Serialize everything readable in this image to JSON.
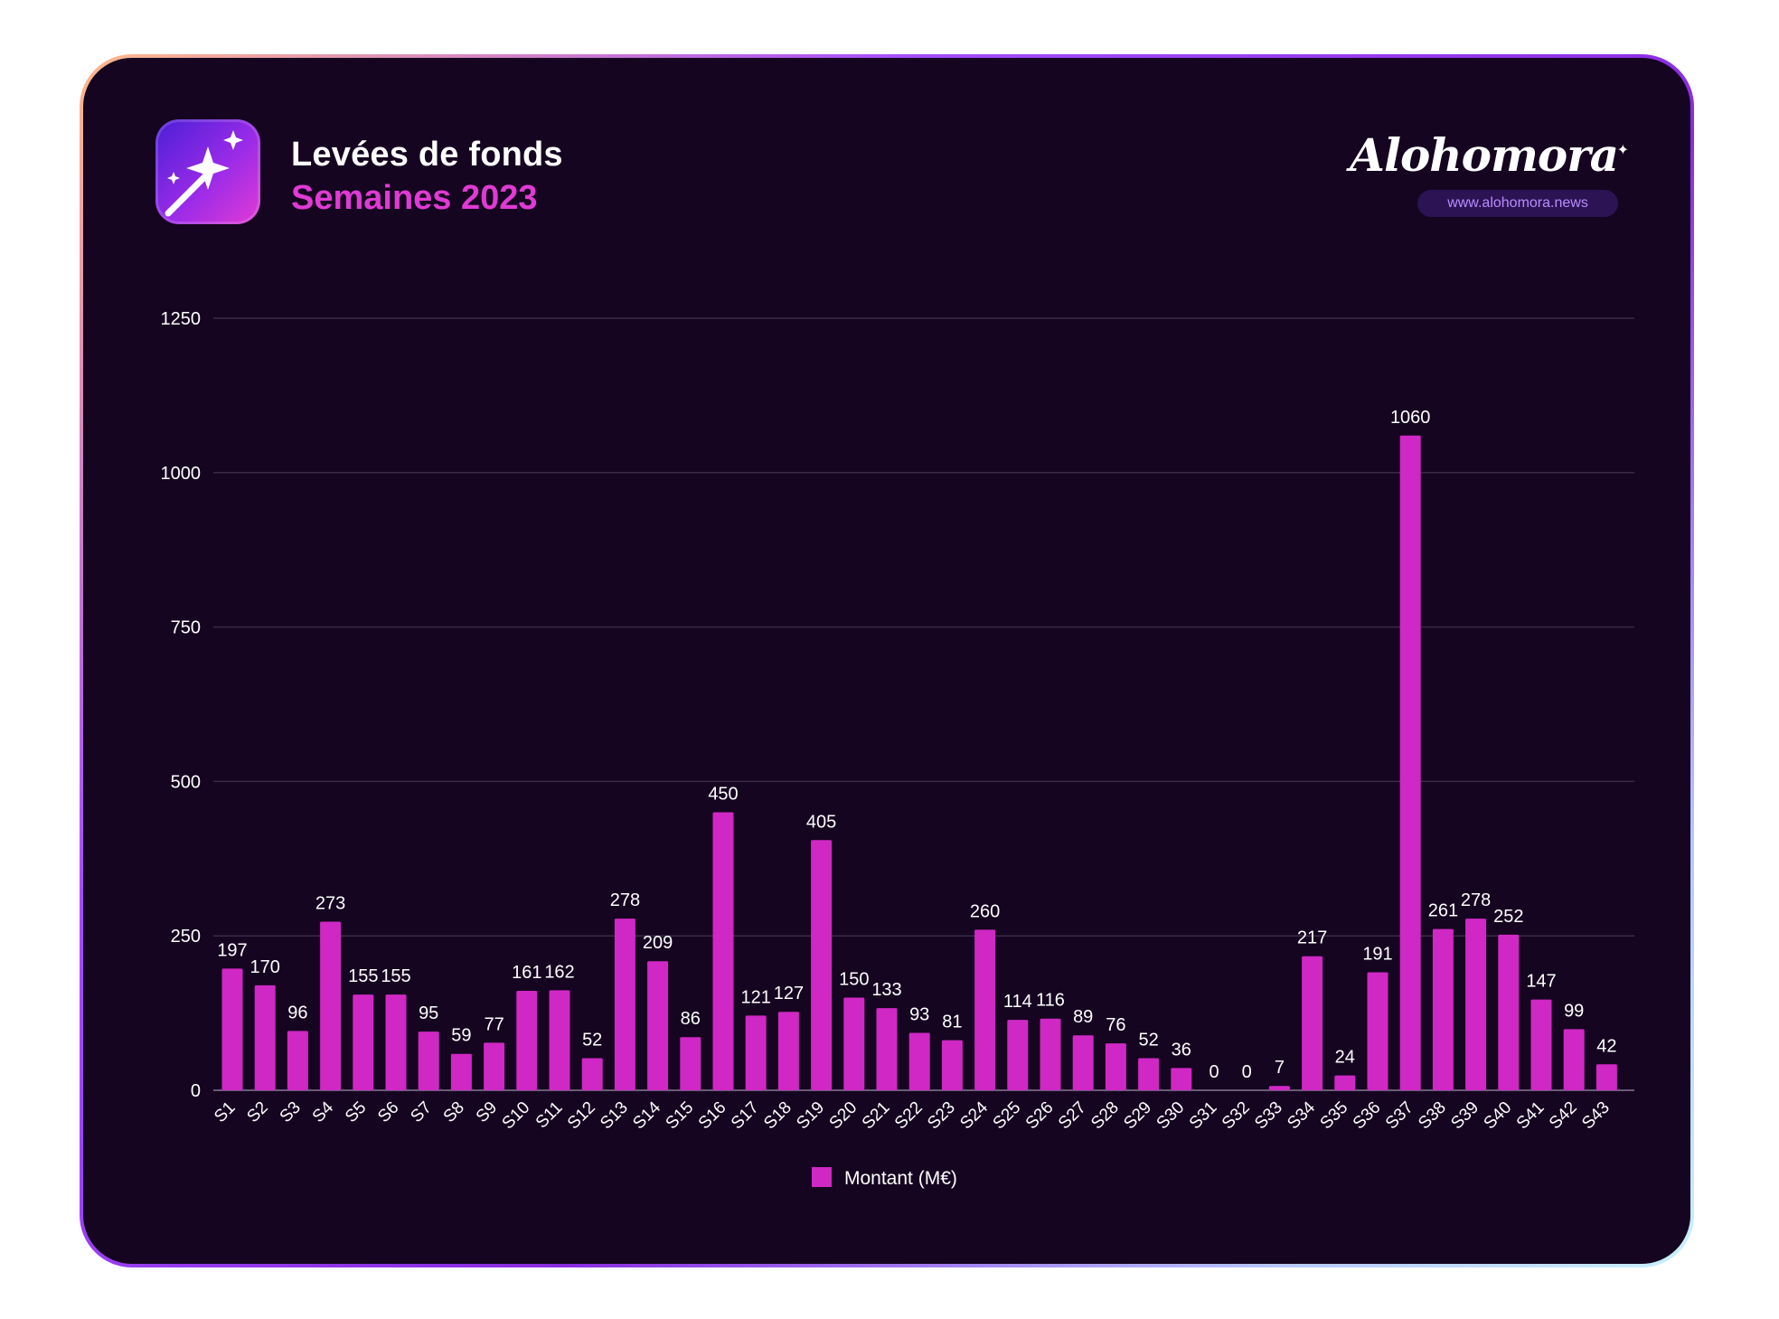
{
  "header": {
    "title": "Levées de fonds",
    "subtitle": "Semaines 2023",
    "icon": "magic-wand-icon",
    "brand_name": "Alohomora",
    "brand_url": "www.alohomora.news"
  },
  "colors": {
    "background": "#150520",
    "bar": "#d028c4",
    "accent": "#e03ad4",
    "grid": "#3a2a48",
    "text": "#ffffff"
  },
  "chart_data": {
    "type": "bar",
    "title": "",
    "xlabel": "",
    "ylabel": "",
    "ylim": [
      0,
      1250
    ],
    "yticks": [
      0,
      250,
      500,
      750,
      1000,
      1250
    ],
    "grid": true,
    "legend_position": "bottom",
    "categories": [
      "S1",
      "S2",
      "S3",
      "S4",
      "S5",
      "S6",
      "S7",
      "S8",
      "S9",
      "S10",
      "S11",
      "S12",
      "S13",
      "S14",
      "S15",
      "S16",
      "S17",
      "S18",
      "S19",
      "S20",
      "S21",
      "S22",
      "S23",
      "S24",
      "S25",
      "S26",
      "S27",
      "S28",
      "S29",
      "S30",
      "S31",
      "S32",
      "S33",
      "S34",
      "S35",
      "S36",
      "S37",
      "S38",
      "S39",
      "S40",
      "S41",
      "S42",
      "S43"
    ],
    "series": [
      {
        "name": "Montant (M€)",
        "values": [
          197,
          170,
          96,
          273,
          155,
          155,
          95,
          59,
          77,
          161,
          162,
          52,
          278,
          209,
          86,
          450,
          121,
          127,
          405,
          150,
          133,
          93,
          81,
          260,
          114,
          116,
          89,
          76,
          52,
          36,
          0,
          0,
          7,
          217,
          24,
          191,
          1060,
          261,
          278,
          252,
          147,
          99,
          42
        ]
      }
    ]
  }
}
